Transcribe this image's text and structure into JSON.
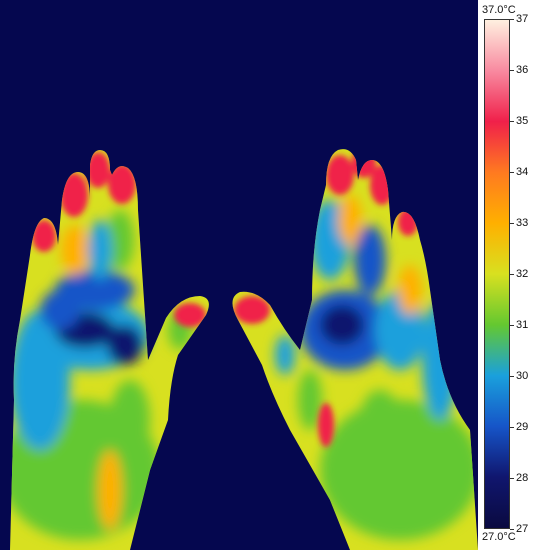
{
  "scale": {
    "max_label": "37.0°C",
    "min_label": "27.0°C",
    "min": 27,
    "max": 37,
    "ticks": [
      "37",
      "36",
      "35",
      "34",
      "33",
      "32",
      "31",
      "30",
      "29",
      "28",
      "27"
    ]
  },
  "palette": {
    "background": "#05074f",
    "c27": "#0a0a40",
    "c28": "#10166e",
    "c29": "#1655c8",
    "c30": "#1aa0dc",
    "c31": "#64c830",
    "c32": "#d8e020",
    "c33": "#ffb000",
    "c34": "#ff7a20",
    "c35": "#f0204a",
    "c36": "#f88aa0",
    "c37": "#fff0e0"
  }
}
